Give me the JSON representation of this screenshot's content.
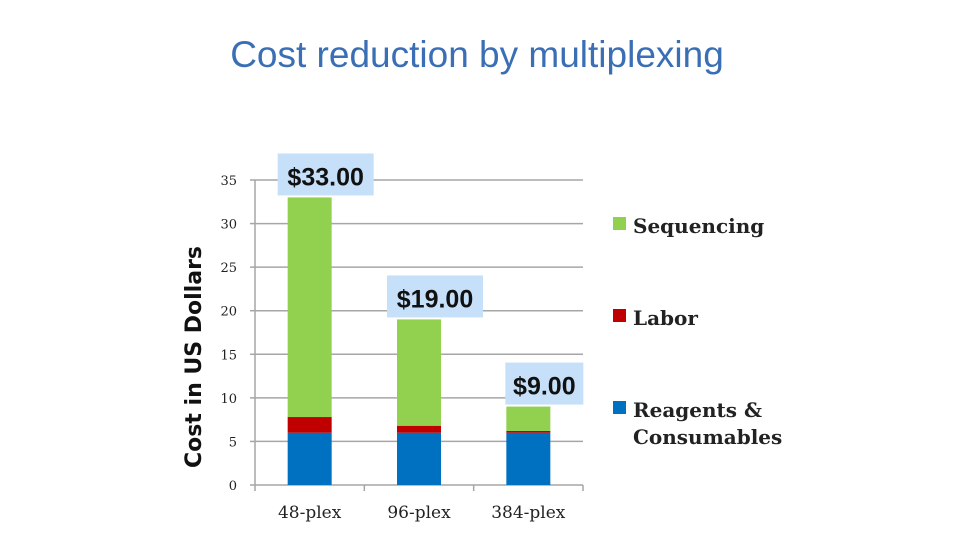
{
  "title": "Cost reduction by multiplexing",
  "colors": {
    "title": "#3a6fb5",
    "Sequencing": "#92d050",
    "Labor": "#c00000",
    "Reagents & Consumables": "#0070c0",
    "callout_bg": "#c6e0fa",
    "grid": "#a6a6a6"
  },
  "chart_data": {
    "type": "bar",
    "stacked": true,
    "categories": [
      "48-plex",
      "96-plex",
      "384-plex"
    ],
    "series": [
      {
        "name": "Reagents & Consumables",
        "values": [
          6.0,
          6.0,
          6.0
        ]
      },
      {
        "name": "Labor",
        "values": [
          1.8,
          0.8,
          0.2
        ]
      },
      {
        "name": "Sequencing",
        "values": [
          25.2,
          12.2,
          2.8
        ]
      }
    ],
    "totals_labels": [
      "$33.00",
      "$19.00",
      "$9.00"
    ],
    "ylabel": "Cost in US Dollars",
    "ylim": [
      0,
      35
    ],
    "yticks": [
      0,
      5,
      10,
      15,
      20,
      25,
      30,
      35
    ],
    "grid": true,
    "legend": {
      "placement": "right",
      "entries": [
        {
          "series": "Sequencing",
          "lines": [
            "Sequencing"
          ]
        },
        {
          "series": "Labor",
          "lines": [
            "Labor"
          ]
        },
        {
          "series": "Reagents & Consumables",
          "lines": [
            "Reagents &",
            "Consumables"
          ]
        }
      ]
    }
  }
}
